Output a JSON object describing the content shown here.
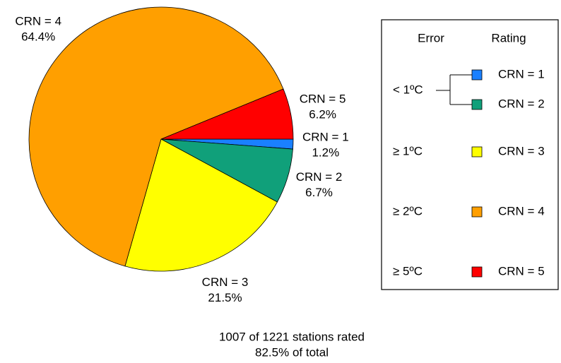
{
  "chart_data": {
    "type": "pie",
    "categories": [
      "CRN = 1",
      "CRN = 2",
      "CRN = 3",
      "CRN = 4",
      "CRN = 5"
    ],
    "values": [
      1.2,
      6.7,
      21.5,
      64.4,
      6.2
    ],
    "value_labels": [
      "1.2%",
      "6.7%",
      "21.5%",
      "64.4%",
      "6.2%"
    ],
    "colors": [
      "#1a80ff",
      "#10a07a",
      "#ffff00",
      "#ff9f00",
      "#ff0000"
    ],
    "legend": {
      "headers": [
        "Error",
        "Rating"
      ],
      "errors": [
        "< 1ºC",
        "≥ 1ºC",
        "≥ 2ºC",
        "≥ 5ºC"
      ]
    },
    "notes": [
      "1007 of 1221 stations rated",
      "82.5% of total"
    ]
  }
}
